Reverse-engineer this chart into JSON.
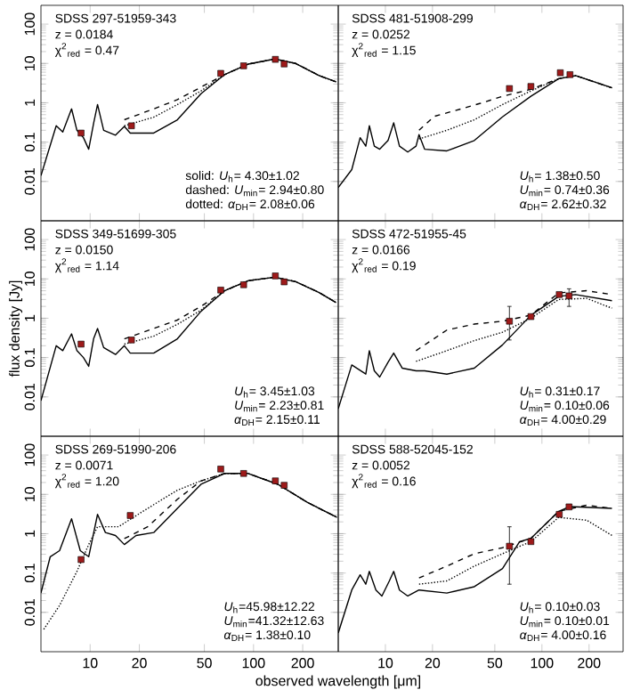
{
  "chart_data": [
    {
      "type": "line",
      "log": "xy",
      "xlim": [
        5,
        330
      ],
      "ylim": [
        0.001,
        300
      ],
      "xticks": [
        10,
        20,
        50,
        100,
        200
      ],
      "yticks": [
        0.01,
        0.1,
        1,
        10,
        100
      ],
      "tick_labels": "y",
      "annotations": [
        "SDSS 297-51959-343",
        "z = 0.0184",
        "χ$^{2}$$_{red}$ = 0.47",
        "solid:   *U*$_{h}$= 4.30±1.02",
        "dashed: *U*$_{min}$= 2.94±0.80",
        "dotted: *α*$_{DH}$= 2.08±0.06"
      ],
      "series": [
        {
          "line_style": "solid",
          "marker": "none",
          "color": "#000000",
          "x": [
            5,
            6.2,
            6.8,
            7.7,
            8.3,
            9.1,
            9.8,
            10.5,
            11.1,
            12.1,
            14.3,
            16.2,
            17.6,
            24.5,
            34.2,
            47.7,
            66.5,
            92.7,
            135,
            181,
            252,
            320
          ],
          "values": [
            0.014,
            0.26,
            0.18,
            0.7,
            0.2,
            0.13,
            0.066,
            0.3,
            0.9,
            0.2,
            0.15,
            0.25,
            0.17,
            0.17,
            0.37,
            1.7,
            5.2,
            9.6,
            13,
            10,
            4.9,
            3.4
          ]
        },
        {
          "line_style": "dashed",
          "marker": "none",
          "color": "#000000",
          "x": [
            16.2,
            24.5,
            34.2,
            47.7,
            66.5,
            92.7,
            135,
            181,
            252,
            320
          ],
          "values": [
            0.37,
            0.7,
            1.2,
            2.5,
            5.2,
            9.6,
            13,
            10,
            4.9,
            3.4
          ]
        },
        {
          "line_style": "dotted",
          "marker": "none",
          "color": "#000000",
          "x": [
            16.2,
            24.5,
            34.2,
            47.7,
            66.5,
            92.7,
            135,
            181,
            252,
            320
          ],
          "values": [
            0.26,
            0.43,
            0.9,
            2.0,
            5.2,
            9.6,
            13,
            10,
            4.9,
            3.4
          ]
        },
        {
          "type": "scatter",
          "marker": "square",
          "color": "#9e1a1a",
          "x": [
            8.8,
            17.9,
            63,
            87,
            136,
            154
          ],
          "values": [
            0.17,
            0.26,
            5.6,
            8.7,
            12.7,
            9.7
          ]
        }
      ]
    },
    {
      "type": "line",
      "log": "xy",
      "xlim": [
        5,
        330
      ],
      "ylim": [
        0.001,
        300
      ],
      "xticks": [
        10,
        20,
        50,
        100,
        200
      ],
      "yticks": [
        0.01,
        0.1,
        1,
        10,
        100
      ],
      "tick_labels": false,
      "annotations": [
        "SDSS 481-51908-299",
        "z = 0.0252",
        "χ$^{2}$$_{red}$ = 1.15",
        "*U*$_{h}$= 1.38±0.50",
        "*U*$_{min}$= 0.74±0.36",
        "*α*$_{DH}$= 2.62±0.32"
      ],
      "series": [
        {
          "line_style": "solid",
          "marker": "none",
          "color": "#000000",
          "x": [
            5.0,
            6.1,
            6.9,
            7.5,
            7.9,
            8.5,
            9.2,
            10.4,
            11.3,
            12.3,
            13.9,
            15.7,
            16.4,
            17.8,
            24.7,
            37,
            56,
            85,
            128,
            164,
            280
          ],
          "values": [
            0.007,
            0.02,
            0.13,
            0.079,
            0.26,
            0.079,
            0.066,
            0.11,
            0.31,
            0.079,
            0.056,
            0.079,
            0.155,
            0.066,
            0.06,
            0.11,
            0.44,
            1.46,
            4.1,
            4.9,
            2.4
          ]
        },
        {
          "line_style": "dashed",
          "marker": "none",
          "color": "#000000",
          "x": [
            16.4,
            20.5,
            31.6,
            40.5,
            56,
            85,
            128,
            164,
            280
          ],
          "values": [
            0.2,
            0.45,
            0.73,
            0.97,
            1.46,
            2.2,
            4.1,
            4.9,
            2.4
          ]
        },
        {
          "line_style": "dotted",
          "marker": "none",
          "color": "#000000",
          "x": [
            16.4,
            24.7,
            37,
            56,
            85,
            128,
            164,
            280
          ],
          "values": [
            0.12,
            0.2,
            0.37,
            0.9,
            2.0,
            4.1,
            4.9,
            2.4
          ]
        },
        {
          "type": "scatter",
          "marker": "square",
          "color": "#9e1a1a",
          "x": [
            62,
            85,
            131,
            151
          ],
          "values": [
            2.3,
            2.6,
            5.8,
            5.2
          ]
        }
      ]
    },
    {
      "type": "line",
      "log": "xy",
      "xlim": [
        5,
        330
      ],
      "ylim": [
        0.001,
        300
      ],
      "xticks": [
        10,
        20,
        50,
        100,
        200
      ],
      "yticks": [
        0.01,
        0.1,
        1,
        10,
        100
      ],
      "tick_labels": "y",
      "ylabel": "flux density [Jy]",
      "annotations": [
        "SDSS 349-51699-305",
        "z = 0.0150",
        "χ$^{2}$$_{red}$ = 1.14",
        "*U*$_{h}$= 3.45±1.03",
        "*U*$_{min}$= 2.23±0.81",
        "*α*$_{DH}$= 2.15±0.11"
      ],
      "series": [
        {
          "line_style": "solid",
          "marker": "none",
          "color": "#000000",
          "x": [
            5,
            6.2,
            6.8,
            7.7,
            8.3,
            9.1,
            9.8,
            10.5,
            11.1,
            12.1,
            14.3,
            16.2,
            17.6,
            24.5,
            34.2,
            47.7,
            66.5,
            92.7,
            135,
            181,
            252,
            320
          ],
          "values": [
            0.008,
            0.2,
            0.15,
            0.4,
            0.15,
            0.1,
            0.06,
            0.3,
            0.55,
            0.18,
            0.12,
            0.2,
            0.13,
            0.13,
            0.3,
            1.5,
            5,
            9,
            11,
            8.5,
            4.5,
            2.5
          ]
        },
        {
          "line_style": "dashed",
          "marker": "none",
          "color": "#000000",
          "x": [
            16.2,
            24.5,
            34.2,
            47.7,
            66.5,
            92.7,
            135,
            181,
            252,
            320
          ],
          "values": [
            0.3,
            0.55,
            0.9,
            2.0,
            5,
            9,
            11,
            8.5,
            4.5,
            2.5
          ]
        },
        {
          "line_style": "dotted",
          "marker": "none",
          "color": "#000000",
          "x": [
            16.2,
            24.5,
            34.2,
            47.7,
            66.5,
            92.7,
            135,
            181,
            252,
            320
          ],
          "values": [
            0.22,
            0.35,
            0.7,
            1.6,
            5,
            9,
            11,
            8.5,
            4.5,
            2.5
          ]
        },
        {
          "type": "scatter",
          "marker": "square",
          "color": "#9e1a1a",
          "x": [
            8.8,
            17.9,
            63,
            87,
            136,
            154
          ],
          "values": [
            0.22,
            0.28,
            5.2,
            7.1,
            11.9,
            8.4
          ]
        }
      ]
    },
    {
      "type": "line",
      "log": "xy",
      "xlim": [
        5,
        330
      ],
      "ylim": [
        0.001,
        300
      ],
      "xticks": [
        10,
        20,
        50,
        100,
        200
      ],
      "yticks": [
        0.01,
        0.1,
        1,
        10,
        100
      ],
      "tick_labels": false,
      "annotations": [
        "SDSS 472-51955-45",
        "z = 0.0166",
        "χ$^{2}$$_{red}$ = 0.19",
        "*U*$_{h}$= 0.31±0.17",
        "*U*$_{min}$= 0.10±0.06",
        "*α*$_{DH}$= 4.00±0.29"
      ],
      "series": [
        {
          "line_style": "solid",
          "marker": "none",
          "color": "#000000",
          "x": [
            5.0,
            6.1,
            7.5,
            7.9,
            8.5,
            9.2,
            10.4,
            11.3,
            12.8,
            15.7,
            17.8,
            24.7,
            37,
            56,
            85,
            128,
            164,
            280
          ],
          "values": [
            0.005,
            0.065,
            0.038,
            0.15,
            0.046,
            0.032,
            0.076,
            0.13,
            0.054,
            0.046,
            0.046,
            0.038,
            0.054,
            0.21,
            1.19,
            3.6,
            4.0,
            2.8
          ]
        },
        {
          "line_style": "dashed",
          "marker": "none",
          "color": "#000000",
          "x": [
            15.7,
            24.7,
            37,
            56,
            85,
            128,
            193,
            280
          ],
          "values": [
            0.15,
            0.5,
            0.71,
            0.84,
            1.2,
            4.4,
            5.0,
            4.0
          ]
        },
        {
          "line_style": "dotted",
          "marker": "none",
          "color": "#000000",
          "x": [
            15.7,
            24.7,
            37,
            56,
            85,
            128,
            193,
            280
          ],
          "values": [
            0.08,
            0.15,
            0.27,
            0.44,
            1.0,
            3.0,
            3.2,
            1.8
          ]
        },
        {
          "type": "scatter",
          "marker": "square",
          "color": "#9e1a1a",
          "x": [
            62,
            85,
            129,
            149
          ],
          "values": [
            0.84,
            1.1,
            4.0,
            3.7
          ],
          "errors": [
            [
              0.28,
              2.0
            ],
            null,
            null,
            [
              2.0,
              5.6
            ]
          ]
        }
      ]
    },
    {
      "type": "line",
      "log": "xy",
      "xlim": [
        5,
        330
      ],
      "ylim": [
        0.001,
        300
      ],
      "xticks": [
        10,
        20,
        50,
        100,
        200
      ],
      "yticks": [
        0.01,
        0.1,
        1,
        10,
        100
      ],
      "xlabel": "observed wavelength [μm]",
      "annotations": [
        "SDSS 269-51990-206",
        "z = 0.0071",
        "χ$^{2}$$_{red}$ = 1.20",
        "*U*$_{h}$=45.98±12.22",
        "*U*$_{min}$=41.32±12.63",
        "*α*$_{DH}$= 1.38±0.10"
      ],
      "series": [
        {
          "line_style": "solid",
          "marker": "none",
          "color": "#000000",
          "x": [
            5.0,
            5.7,
            6.5,
            7.7,
            8.7,
            9.8,
            11.1,
            12.4,
            14.3,
            16.2,
            19.1,
            24.5,
            34.2,
            47.7,
            66.5,
            92.7,
            141,
            213,
            324
          ],
          "values": [
            0.031,
            0.26,
            0.37,
            2.4,
            0.37,
            0.26,
            3.1,
            1.07,
            0.9,
            0.53,
            0.9,
            1.07,
            4.4,
            18,
            34,
            34,
            18,
            6.3,
            2.6
          ]
        },
        {
          "line_style": "dashed",
          "marker": "none",
          "color": "#000000",
          "x": [
            16.2,
            22.5,
            34.2,
            47.7,
            66.5,
            92.7,
            141,
            213,
            324
          ],
          "values": [
            0.75,
            1.5,
            7.5,
            22,
            34,
            34,
            18,
            6.3,
            2.6
          ]
        },
        {
          "line_style": "dotted",
          "marker": "none",
          "color": "#000000",
          "x": [
            5.2,
            6.5,
            8.3,
            9.8,
            11.1,
            14.9,
            22.5,
            34.2,
            47.7,
            66.5,
            92.7,
            141,
            213,
            324
          ],
          "values": [
            0.0037,
            0.015,
            0.11,
            0.53,
            1.5,
            1.5,
            4.4,
            12.8,
            22,
            34,
            34,
            18,
            6.3,
            2.6
          ]
        },
        {
          "type": "scatter",
          "marker": "square",
          "color": "#9e1a1a",
          "x": [
            8.8,
            17.6,
            63,
            87,
            136,
            154
          ],
          "values": [
            0.22,
            2.9,
            44,
            34,
            22,
            17
          ]
        }
      ]
    },
    {
      "type": "line",
      "log": "xy",
      "xlim": [
        5,
        330
      ],
      "ylim": [
        0.001,
        300
      ],
      "xticks": [
        10,
        20,
        50,
        100,
        200
      ],
      "yticks": [
        0.01,
        0.1,
        1,
        10,
        100
      ],
      "tick_labels": "x",
      "annotations": [
        "SDSS 588-52045-152",
        "z = 0.0052",
        "χ$^{2}$$_{red}$ = 0.16",
        "*U*$_{h}$= 0.10±0.03",
        "*U*$_{min}$= 0.10±0.01",
        "*α*$_{DH}$= 4.00±0.16"
      ],
      "series": [
        {
          "line_style": "solid",
          "marker": "none",
          "color": "#000000",
          "x": [
            5.0,
            6.1,
            6.9,
            7.5,
            7.9,
            8.7,
            9.5,
            10.6,
            11.3,
            12.3,
            13.9,
            16.4,
            24.7,
            37,
            56,
            72,
            85,
            128,
            151,
            280
          ],
          "values": [
            0.003,
            0.037,
            0.09,
            0.052,
            0.11,
            0.037,
            0.026,
            0.063,
            0.11,
            0.037,
            0.026,
            0.037,
            0.031,
            0.045,
            0.13,
            0.63,
            0.76,
            3.7,
            4.9,
            4.4
          ]
        },
        {
          "line_style": "dashed",
          "marker": "none",
          "color": "#000000",
          "x": [
            16.4,
            24.7,
            37,
            56,
            85,
            128,
            193,
            280
          ],
          "values": [
            0.075,
            0.15,
            0.31,
            0.44,
            0.76,
            3.7,
            5.3,
            4.4
          ]
        },
        {
          "line_style": "dotted",
          "marker": "none",
          "color": "#000000",
          "x": [
            16.4,
            24.7,
            37,
            56,
            85,
            128,
            193,
            280
          ],
          "values": [
            0.052,
            0.063,
            0.15,
            0.31,
            0.63,
            2.6,
            2.2,
            0.9
          ]
        },
        {
          "type": "scatter",
          "marker": "square",
          "color": "#9e1a1a",
          "x": [
            62,
            85,
            129,
            149
          ],
          "values": [
            0.48,
            0.63,
            3.1,
            4.8
          ],
          "errors": [
            [
              0.052,
              1.5
            ],
            null,
            null,
            null
          ]
        }
      ]
    }
  ]
}
